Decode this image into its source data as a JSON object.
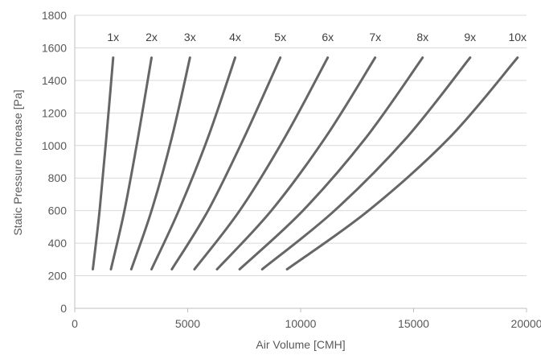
{
  "chart_data": {
    "type": "line",
    "title": "",
    "xlabel": "Air Volume [CMH]",
    "ylabel": "Static Pressure Increase [Pa]",
    "xlim": [
      0,
      20000
    ],
    "ylim": [
      0,
      1800
    ],
    "xticks": [
      0,
      5000,
      10000,
      15000,
      20000
    ],
    "yticks": [
      0,
      200,
      400,
      600,
      800,
      1000,
      1200,
      1400,
      1600,
      1800
    ],
    "grid": "horizontal",
    "line_color": "#666666",
    "series": [
      {
        "name": "1x",
        "x": [
          800,
          1100,
          1400,
          1700
        ],
        "y": [
          240,
          600,
          1050,
          1540
        ]
      },
      {
        "name": "2x",
        "x": [
          1600,
          2200,
          2800,
          3400
        ],
        "y": [
          240,
          600,
          1050,
          1540
        ]
      },
      {
        "name": "3x",
        "x": [
          2500,
          3400,
          4300,
          5100
        ],
        "y": [
          240,
          600,
          1050,
          1540
        ]
      },
      {
        "name": "4x",
        "x": [
          3400,
          4600,
          5900,
          7100
        ],
        "y": [
          240,
          600,
          1050,
          1540
        ]
      },
      {
        "name": "5x",
        "x": [
          4300,
          5900,
          7500,
          9100
        ],
        "y": [
          240,
          600,
          1050,
          1540
        ]
      },
      {
        "name": "6x",
        "x": [
          5300,
          7300,
          9300,
          11200
        ],
        "y": [
          240,
          600,
          1050,
          1540
        ]
      },
      {
        "name": "7x",
        "x": [
          6300,
          8700,
          11100,
          13300
        ],
        "y": [
          240,
          600,
          1050,
          1540
        ]
      },
      {
        "name": "8x",
        "x": [
          7300,
          10100,
          12900,
          15400
        ],
        "y": [
          240,
          600,
          1050,
          1540
        ]
      },
      {
        "name": "9x",
        "x": [
          8300,
          11500,
          14700,
          17500
        ],
        "y": [
          240,
          600,
          1050,
          1540
        ]
      },
      {
        "name": "10x",
        "x": [
          9400,
          13000,
          16600,
          19600
        ],
        "y": [
          240,
          600,
          1050,
          1540
        ]
      }
    ]
  }
}
